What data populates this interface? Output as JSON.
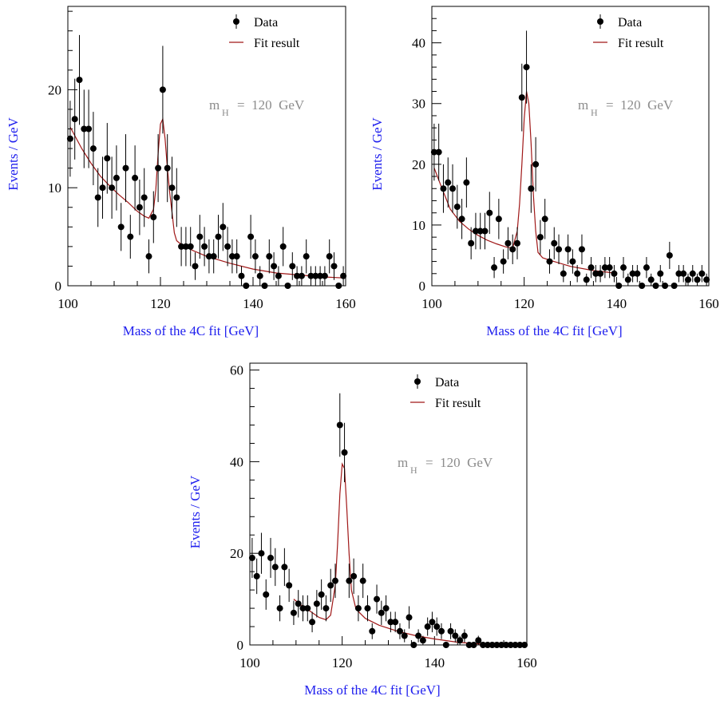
{
  "colors": {
    "axis_title": "#2020ee",
    "annotation": "#8c8c8c",
    "fit": "#a01818",
    "data": "#000000"
  },
  "chart_data": [
    {
      "type": "scatter",
      "xlabel": "Mass of the 4C fit  [GeV]",
      "ylabel": "Events / GeV",
      "xlim": [
        100,
        160
      ],
      "ylim": [
        0,
        28.5
      ],
      "xticks": [
        100,
        120,
        140,
        160
      ],
      "yticks": [
        0,
        10,
        20
      ],
      "legend": {
        "position": "top-right",
        "entries": [
          "Data",
          "Fit result"
        ]
      },
      "annotation": {
        "main": "m",
        "sub": "H",
        "rest": "=  120  GeV"
      },
      "series": [
        {
          "name": "Data",
          "style": "points-with-error-bars",
          "x": [
            100.5,
            101.5,
            102.5,
            103.5,
            104.5,
            105.5,
            106.5,
            107.5,
            108.5,
            109.5,
            110.5,
            111.5,
            112.5,
            113.5,
            114.5,
            115.5,
            116.5,
            117.5,
            118.5,
            119.5,
            120.5,
            121.5,
            122.5,
            123.5,
            124.5,
            125.5,
            126.5,
            127.5,
            128.5,
            129.5,
            130.5,
            131.5,
            132.5,
            133.5,
            134.5,
            135.5,
            136.5,
            137.5,
            138.5,
            139.5,
            140.5,
            141.5,
            142.5,
            143.5,
            144.5,
            145.5,
            146.5,
            147.5,
            148.5,
            149.5,
            150.5,
            151.5,
            152.5,
            153.5,
            154.5,
            155.5,
            156.5,
            157.5,
            158.5,
            159.5
          ],
          "y": [
            15,
            17,
            21,
            16,
            16,
            14,
            9,
            10,
            13,
            10,
            11,
            6,
            12,
            5,
            11,
            8,
            9,
            3,
            7,
            12,
            20,
            12,
            10,
            9,
            4,
            4,
            4,
            2,
            5,
            4,
            3,
            3,
            5,
            6,
            4,
            3,
            3,
            1,
            0,
            5,
            3,
            1,
            0,
            3,
            2,
            1,
            4,
            0,
            2,
            1,
            1,
            3,
            1,
            1,
            1,
            1,
            3,
            2,
            0,
            1
          ]
        },
        {
          "name": "Fit result",
          "style": "line",
          "x": [
            100.5,
            103,
            105,
            107,
            109,
            111,
            113,
            115,
            116.5,
            117.5,
            118.5,
            119,
            119.5,
            120,
            120.5,
            121,
            121.5,
            122,
            122.5,
            123,
            123.5,
            124,
            125,
            127,
            130,
            135,
            140,
            145,
            150,
            155,
            159.5
          ],
          "y": [
            16.2,
            14,
            12.5,
            11.2,
            10.2,
            9.3,
            8.5,
            7.6,
            7.1,
            6.9,
            7.8,
            9.8,
            13.5,
            16.5,
            17,
            15,
            12,
            9.5,
            7.5,
            5.4,
            4.6,
            4.4,
            4.1,
            3.6,
            3,
            2.3,
            1.7,
            1.3,
            1.1,
            0.9,
            0.8
          ]
        }
      ]
    },
    {
      "type": "scatter",
      "xlabel": "Mass of the 4C fit  [GeV]",
      "ylabel": "Events / GeV",
      "xlim": [
        100,
        160
      ],
      "ylim": [
        0,
        46
      ],
      "xticks": [
        100,
        120,
        140,
        160
      ],
      "yticks": [
        0,
        10,
        20,
        30,
        40
      ],
      "legend": {
        "position": "top-right",
        "entries": [
          "Data",
          "Fit result"
        ]
      },
      "annotation": {
        "main": "m",
        "sub": "H",
        "rest": "=  120  GeV"
      },
      "series": [
        {
          "name": "Data",
          "style": "points-with-error-bars",
          "x": [
            100.5,
            101.5,
            102.5,
            103.5,
            104.5,
            105.5,
            106.5,
            107.5,
            108.5,
            109.5,
            110.5,
            111.5,
            112.5,
            113.5,
            114.5,
            115.5,
            116.5,
            117.5,
            118.5,
            119.5,
            120.5,
            121.5,
            122.5,
            123.5,
            124.5,
            125.5,
            126.5,
            127.5,
            128.5,
            129.5,
            130.5,
            131.5,
            132.5,
            133.5,
            134.5,
            135.5,
            136.5,
            137.5,
            138.5,
            139.5,
            140.5,
            141.5,
            142.5,
            143.5,
            144.5,
            145.5,
            146.5,
            147.5,
            148.5,
            149.5,
            150.5,
            151.5,
            152.5,
            153.5,
            154.5,
            155.5,
            156.5,
            157.5,
            158.5,
            159.5
          ],
          "y": [
            22,
            22,
            16,
            17,
            16,
            13,
            11,
            17,
            7,
            9,
            9,
            9,
            12,
            3,
            11,
            4,
            7,
            6,
            7,
            31,
            36,
            16,
            20,
            8,
            11,
            4,
            7,
            6,
            2,
            6,
            4,
            2,
            6,
            1,
            3,
            2,
            2,
            3,
            3,
            2,
            0,
            3,
            1,
            2,
            2,
            0,
            3,
            1,
            0,
            2,
            0,
            5,
            0,
            2,
            2,
            1,
            2,
            1,
            2,
            1
          ]
        },
        {
          "name": "Fit result",
          "style": "line",
          "x": [
            100.5,
            102,
            104,
            106,
            108,
            110,
            112,
            114,
            116,
            117.5,
            118.5,
            119,
            119.5,
            120,
            120.5,
            121,
            121.5,
            122,
            122.5,
            123,
            124,
            126,
            130,
            135,
            139.5
          ],
          "y": [
            19.4,
            16.4,
            12.6,
            10.6,
            9.3,
            8.3,
            7.5,
            6.9,
            6.4,
            6.2,
            9,
            13.5,
            20,
            27.5,
            32,
            30,
            23.5,
            15,
            9,
            5.5,
            4.6,
            4.1,
            3.2,
            2.5,
            2.1
          ]
        }
      ]
    },
    {
      "type": "scatter",
      "xlabel": "Mass of the 4C fit  [GeV]",
      "ylabel": "Events / GeV",
      "xlim": [
        100,
        160
      ],
      "ylim": [
        0,
        61.5
      ],
      "xticks": [
        100,
        120,
        140,
        160
      ],
      "yticks": [
        0,
        20,
        40,
        60
      ],
      "legend": {
        "position": "top-right",
        "entries": [
          "Data",
          "Fit result"
        ]
      },
      "annotation": {
        "main": "m",
        "sub": "H",
        "rest": "=  120  GeV"
      },
      "series": [
        {
          "name": "Data",
          "style": "points-with-error-bars",
          "x": [
            100.5,
            101.5,
            102.5,
            103.5,
            104.5,
            105.5,
            106.5,
            107.5,
            108.5,
            109.5,
            110.5,
            111.5,
            112.5,
            113.5,
            114.5,
            115.5,
            116.5,
            117.5,
            118.5,
            119.5,
            120.5,
            121.5,
            122.5,
            123.5,
            124.5,
            125.5,
            126.5,
            127.5,
            128.5,
            129.5,
            130.5,
            131.5,
            132.5,
            133.5,
            134.5,
            135.5,
            136.5,
            137.5,
            138.5,
            139.5,
            140.5,
            141.5,
            142.5,
            143.5,
            144.5,
            145.5,
            146.5,
            147.5,
            148.5,
            149.5,
            150.5,
            151.5,
            152.5,
            153.5,
            154.5,
            155.5,
            156.5,
            157.5,
            158.5,
            159.5
          ],
          "y": [
            19,
            15,
            20,
            11,
            19,
            17,
            8,
            17,
            13,
            7,
            9,
            8,
            8,
            5,
            9,
            11,
            8,
            13,
            14,
            48,
            42,
            14,
            15,
            8,
            14,
            8,
            3,
            10,
            7,
            8,
            5,
            5,
            3,
            2,
            6,
            0,
            2,
            1,
            4,
            5,
            4,
            3,
            0,
            3,
            2,
            1,
            2,
            0,
            0,
            1,
            0,
            0,
            0,
            0,
            0,
            0,
            0,
            0,
            0,
            0
          ]
        },
        {
          "name": "Fit result",
          "style": "line",
          "x": [
            109.5,
            111,
            113,
            115,
            116.5,
            117.5,
            118.5,
            119,
            119.5,
            120,
            120.5,
            121,
            121.5,
            122,
            123,
            125,
            128,
            132,
            136,
            140,
            145,
            150,
            155,
            159.5
          ],
          "y": [
            10,
            8.8,
            7.4,
            6,
            5.5,
            6.5,
            13,
            22,
            33,
            39.5,
            38.5,
            30,
            20,
            12,
            7.8,
            5.8,
            4.3,
            3,
            2,
            1.3,
            0.6,
            0.2,
            0.1,
            0
          ]
        }
      ]
    }
  ]
}
